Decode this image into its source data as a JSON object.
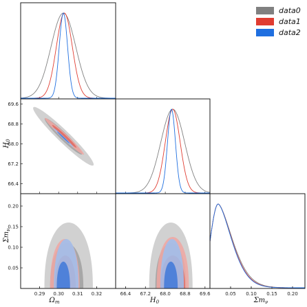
{
  "chart_data": {
    "type": "corner",
    "parameters": [
      {
        "key": "om",
        "label": "Ω_m",
        "label_main": "Ω",
        "label_sub": "m",
        "range": [
          0.28,
          0.33
        ],
        "ticks": [
          0.29,
          0.3,
          0.31,
          0.32
        ],
        "tick_labels": [
          "0.29",
          "0.30",
          "0.31",
          "0.32"
        ]
      },
      {
        "key": "h0",
        "label": "H_0",
        "label_main": "H",
        "label_sub": "0",
        "range": [
          66.0,
          69.8
        ],
        "ticks": [
          66.4,
          67.2,
          68.0,
          68.8,
          69.6
        ],
        "tick_labels": [
          "66.4",
          "67.2",
          "68.0",
          "68.8",
          "69.6"
        ]
      },
      {
        "key": "mnu",
        "label": "Σm_ν",
        "label_main": "Σm",
        "label_sub": "ν",
        "range": [
          0.0,
          0.23
        ],
        "ticks": [
          0.05,
          0.1,
          0.15,
          0.2
        ],
        "tick_labels": [
          "0.05",
          "0.10",
          "0.15",
          "0.20"
        ]
      }
    ],
    "series": [
      {
        "name": "data0",
        "color": "#808080",
        "marginals": {
          "om": {
            "mean": 0.3025,
            "sigma": 0.0065
          },
          "h0": {
            "mean": 68.3,
            "sigma": 0.48
          },
          "mnu": {
            "peak": 0.02,
            "tail": 0.05
          }
        },
        "om_h0": {
          "rho": -0.96
        },
        "om_mnu": {
          "levels": [
            {
              "om_lo": 0.2925,
              "om_hi": 0.318,
              "mnu_top": 0.16
            },
            {
              "om_lo": 0.2955,
              "om_hi": 0.313,
              "mnu_top": 0.11
            }
          ]
        },
        "h0_mnu": {
          "levels": [
            {
              "h0_lo": 67.35,
              "h0_hi": 69.1,
              "mnu_top": 0.16
            },
            {
              "h0_lo": 67.6,
              "h0_hi": 68.85,
              "mnu_top": 0.11
            }
          ]
        }
      },
      {
        "name": "data1",
        "color": "#e03c31",
        "marginals": {
          "om": {
            "mean": 0.303,
            "sigma": 0.0042
          },
          "h0": {
            "mean": 68.3,
            "sigma": 0.3
          },
          "mnu": {
            "peak": 0.02,
            "tail": 0.048
          }
        },
        "om_h0": {
          "rho": -0.98
        },
        "om_mnu": {
          "levels": [
            {
              "om_lo": 0.2955,
              "om_hi": 0.311,
              "mnu_top": 0.12
            },
            {
              "om_lo": 0.298,
              "om_hi": 0.309,
              "mnu_top": 0.08
            }
          ]
        },
        "h0_mnu": {
          "levels": [
            {
              "h0_lo": 67.65,
              "h0_hi": 68.95,
              "mnu_top": 0.125
            },
            {
              "h0_lo": 67.8,
              "h0_hi": 68.8,
              "mnu_top": 0.08
            }
          ]
        }
      },
      {
        "name": "data2",
        "color": "#1f6fe0",
        "marginals": {
          "om": {
            "mean": 0.3025,
            "sigma": 0.0022
          },
          "h0": {
            "mean": 68.25,
            "sigma": 0.16
          },
          "mnu": {
            "peak": 0.02,
            "tail": 0.047
          }
        },
        "om_h0": {
          "rho": -0.99
        },
        "om_mnu": {
          "levels": [
            {
              "om_lo": 0.2975,
              "om_hi": 0.3105,
              "mnu_top": 0.12
            },
            {
              "om_lo": 0.299,
              "om_hi": 0.306,
              "mnu_top": 0.065
            }
          ]
        },
        "h0_mnu": {
          "levels": [
            {
              "h0_lo": 67.8,
              "h0_hi": 68.75,
              "mnu_top": 0.12
            },
            {
              "h0_lo": 67.95,
              "h0_hi": 68.5,
              "mnu_top": 0.065
            }
          ]
        }
      }
    ],
    "legend": {
      "position": "top-right",
      "entries": [
        "data0",
        "data1",
        "data2"
      ]
    },
    "grid": false
  }
}
